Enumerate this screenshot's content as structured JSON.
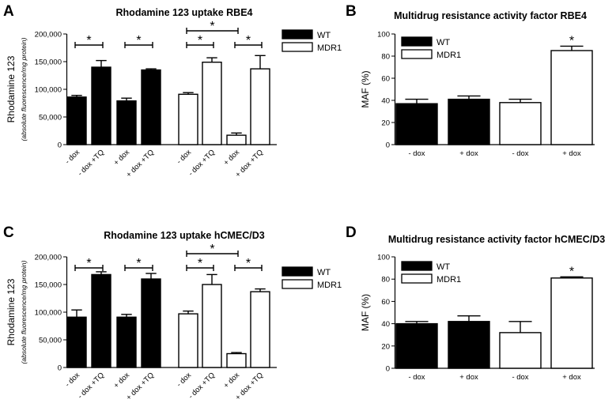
{
  "chart_data": [
    {
      "panel": "A",
      "type": "bar",
      "title": "Rhodamine 123 uptake RBE4",
      "ylabel": "Rhodamine 123",
      "ylabel_sub": "(absolute fluorescence/mg protein)",
      "ylim": [
        0,
        200000
      ],
      "yticks": [
        0,
        50000,
        100000,
        150000,
        200000
      ],
      "ytick_labels": [
        "0",
        "50,000",
        "100,000",
        "150,000",
        "200,000"
      ],
      "categories": [
        "- dox",
        "- dox +TQ",
        "+ dox",
        "+ dox +TQ",
        "- dox",
        "- dox +TQ",
        "+ dox",
        "+ dox +TQ"
      ],
      "series": [
        {
          "name": "WT",
          "color": "#000000",
          "indices": [
            0,
            1,
            2,
            3
          ]
        },
        {
          "name": "MDR1",
          "color": "#ffffff",
          "indices": [
            4,
            5,
            6,
            7
          ]
        }
      ],
      "values": [
        86000,
        140000,
        79000,
        135000,
        91000,
        149000,
        17000,
        137000
      ],
      "errors": [
        3000,
        12000,
        5000,
        2000,
        3000,
        8000,
        4000,
        24000
      ],
      "significance": [
        {
          "from": 0,
          "to": 1,
          "label": "*"
        },
        {
          "from": 2,
          "to": 3,
          "label": "*"
        },
        {
          "from": 4,
          "to": 5,
          "label": "*"
        },
        {
          "from": 4,
          "to": 6,
          "label": "*"
        },
        {
          "from": 6,
          "to": 7,
          "label": "*"
        }
      ],
      "legend": [
        "WT",
        "MDR1"
      ]
    },
    {
      "panel": "B",
      "type": "bar",
      "title": "Multidrug resistance activity factor RBE4",
      "ylabel": "MAF (%)",
      "ylim": [
        0,
        100
      ],
      "yticks": [
        0,
        20,
        40,
        60,
        80,
        100
      ],
      "ytick_labels": [
        "0",
        "20",
        "40",
        "60",
        "80",
        "100"
      ],
      "categories": [
        "- dox",
        "+ dox",
        "- dox",
        "+ dox"
      ],
      "series": [
        {
          "name": "WT",
          "color": "#000000",
          "indices": [
            0,
            1
          ]
        },
        {
          "name": "MDR1",
          "color": "#ffffff",
          "indices": [
            2,
            3
          ]
        }
      ],
      "values": [
        37,
        41,
        38,
        85
      ],
      "errors": [
        4,
        3,
        3,
        4
      ],
      "stars": [
        {
          "index": 3,
          "label": "*"
        }
      ],
      "legend": [
        "WT",
        "MDR1"
      ]
    },
    {
      "panel": "C",
      "type": "bar",
      "title": "Rhodamine 123 uptake hCMEC/D3",
      "ylabel": "Rhodamine 123",
      "ylabel_sub": "(absolute fluorescence/mg protein)",
      "ylim": [
        0,
        200000
      ],
      "yticks": [
        0,
        50000,
        100000,
        150000,
        200000
      ],
      "ytick_labels": [
        "0",
        "50,000",
        "100,000",
        "150,000",
        "200,000"
      ],
      "categories": [
        "- dox",
        "- dox +TQ",
        "+ dox",
        "+ dox +TQ",
        "- dox",
        "- dox +TQ",
        "+ dox",
        "+ dox +TQ"
      ],
      "series": [
        {
          "name": "WT",
          "color": "#000000",
          "indices": [
            0,
            1,
            2,
            3
          ]
        },
        {
          "name": "MDR1",
          "color": "#ffffff",
          "indices": [
            4,
            5,
            6,
            7
          ]
        }
      ],
      "values": [
        91000,
        168000,
        91000,
        160000,
        97000,
        150000,
        25000,
        137000
      ],
      "errors": [
        13000,
        5000,
        5000,
        10000,
        5000,
        18000,
        2000,
        5000
      ],
      "significance": [
        {
          "from": 0,
          "to": 1,
          "label": "*"
        },
        {
          "from": 2,
          "to": 3,
          "label": "*"
        },
        {
          "from": 4,
          "to": 5,
          "label": "*"
        },
        {
          "from": 4,
          "to": 6,
          "label": "*"
        },
        {
          "from": 6,
          "to": 7,
          "label": "*"
        }
      ],
      "legend": [
        "WT",
        "MDR1"
      ]
    },
    {
      "panel": "D",
      "type": "bar",
      "title": "Multidrug resistance activity factor hCMEC/D3",
      "ylabel": "MAF (%)",
      "ylim": [
        0,
        100
      ],
      "yticks": [
        0,
        20,
        40,
        60,
        80,
        100
      ],
      "ytick_labels": [
        "0",
        "20",
        "40",
        "60",
        "80",
        "100"
      ],
      "categories": [
        "- dox",
        "+ dox",
        "- dox",
        "+ dox"
      ],
      "series": [
        {
          "name": "WT",
          "color": "#000000",
          "indices": [
            0,
            1
          ]
        },
        {
          "name": "MDR1",
          "color": "#ffffff",
          "indices": [
            2,
            3
          ]
        }
      ],
      "values": [
        40,
        42,
        32,
        81
      ],
      "errors": [
        2,
        5,
        10,
        1
      ],
      "stars": [
        {
          "index": 3,
          "label": "*"
        }
      ],
      "legend": [
        "WT",
        "MDR1"
      ]
    }
  ]
}
